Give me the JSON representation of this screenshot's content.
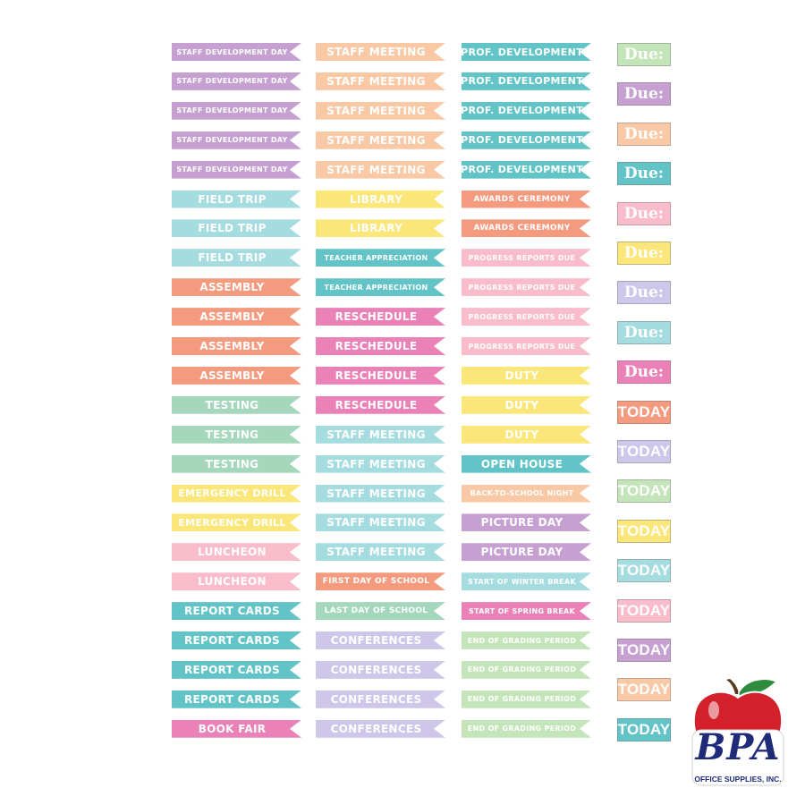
{
  "palette": {
    "purple": "#c7a0d2",
    "peach": "#f9c9a6",
    "teal": "#6fcbc9",
    "lightblue": "#a5dce0",
    "coral": "#f49a7f",
    "green": "#a5d7bd",
    "yellow": "#fbe679",
    "pink": "#f8bccb",
    "magenta": "#ea82b8",
    "lavender": "#cfc7ea",
    "mint": "#c4e5b9",
    "cyan": "#62c4c6"
  },
  "columns": [
    {
      "labels": [
        {
          "text": "STAFF DEVELOPMENT DAY",
          "color": "purple",
          "size": "xs"
        },
        {
          "text": "STAFF DEVELOPMENT DAY",
          "color": "purple",
          "size": "xs"
        },
        {
          "text": "STAFF DEVELOPMENT DAY",
          "color": "purple",
          "size": "xs"
        },
        {
          "text": "STAFF DEVELOPMENT DAY",
          "color": "purple",
          "size": "xs"
        },
        {
          "text": "STAFF DEVELOPMENT DAY",
          "color": "purple",
          "size": "xs"
        },
        {
          "text": "FIELD TRIP",
          "color": "lightblue",
          "size": "lg"
        },
        {
          "text": "FIELD TRIP",
          "color": "lightblue",
          "size": "lg"
        },
        {
          "text": "FIELD TRIP",
          "color": "lightblue",
          "size": "lg"
        },
        {
          "text": "ASSEMBLY",
          "color": "coral",
          "size": "lg"
        },
        {
          "text": "ASSEMBLY",
          "color": "coral",
          "size": "lg"
        },
        {
          "text": "ASSEMBLY",
          "color": "coral",
          "size": "lg"
        },
        {
          "text": "ASSEMBLY",
          "color": "coral",
          "size": "lg"
        },
        {
          "text": "TESTING",
          "color": "green",
          "size": "lg"
        },
        {
          "text": "TESTING",
          "color": "green",
          "size": "lg"
        },
        {
          "text": "TESTING",
          "color": "green",
          "size": "lg"
        },
        {
          "text": "EMERGENCY DRILL",
          "color": "yellow",
          "size": "md"
        },
        {
          "text": "EMERGENCY DRILL",
          "color": "yellow",
          "size": "md"
        },
        {
          "text": "LUNCHEON",
          "color": "pink",
          "size": "lg"
        },
        {
          "text": "LUNCHEON",
          "color": "pink",
          "size": "lg"
        },
        {
          "text": "REPORT CARDS",
          "color": "cyan",
          "size": "lg"
        },
        {
          "text": "REPORT CARDS",
          "color": "cyan",
          "size": "lg"
        },
        {
          "text": "REPORT CARDS",
          "color": "cyan",
          "size": "lg"
        },
        {
          "text": "REPORT CARDS",
          "color": "cyan",
          "size": "lg"
        },
        {
          "text": "BOOK FAIR",
          "color": "magenta",
          "size": "lg"
        }
      ]
    },
    {
      "labels": [
        {
          "text": "STAFF MEETING",
          "color": "peach",
          "size": "lg"
        },
        {
          "text": "STAFF MEETING",
          "color": "peach",
          "size": "lg"
        },
        {
          "text": "STAFF MEETING",
          "color": "peach",
          "size": "lg"
        },
        {
          "text": "STAFF MEETING",
          "color": "peach",
          "size": "lg"
        },
        {
          "text": "STAFF MEETING",
          "color": "peach",
          "size": "lg"
        },
        {
          "text": "LIBRARY",
          "color": "yellow",
          "size": "lg"
        },
        {
          "text": "LIBRARY",
          "color": "yellow",
          "size": "lg"
        },
        {
          "text": "TEACHER APPRECIATION",
          "color": "cyan",
          "size": "xs"
        },
        {
          "text": "TEACHER APPRECIATION",
          "color": "cyan",
          "size": "xs"
        },
        {
          "text": "RESCHEDULE",
          "color": "magenta",
          "size": "lg"
        },
        {
          "text": "RESCHEDULE",
          "color": "magenta",
          "size": "lg"
        },
        {
          "text": "RESCHEDULE",
          "color": "magenta",
          "size": "lg"
        },
        {
          "text": "RESCHEDULE",
          "color": "magenta",
          "size": "lg"
        },
        {
          "text": "STAFF MEETING",
          "color": "lightblue",
          "size": "lg"
        },
        {
          "text": "STAFF MEETING",
          "color": "lightblue",
          "size": "lg"
        },
        {
          "text": "STAFF MEETING",
          "color": "lightblue",
          "size": "lg"
        },
        {
          "text": "STAFF MEETING",
          "color": "lightblue",
          "size": "lg"
        },
        {
          "text": "STAFF MEETING",
          "color": "lightblue",
          "size": "lg"
        },
        {
          "text": "FIRST DAY OF SCHOOL",
          "color": "coral",
          "size": "sm"
        },
        {
          "text": "LAST DAY OF SCHOOL",
          "color": "green",
          "size": "sm"
        },
        {
          "text": "CONFERENCES",
          "color": "lavender",
          "size": "lg"
        },
        {
          "text": "CONFERENCES",
          "color": "lavender",
          "size": "lg"
        },
        {
          "text": "CONFERENCES",
          "color": "lavender",
          "size": "lg"
        },
        {
          "text": "CONFERENCES",
          "color": "lavender",
          "size": "lg"
        }
      ]
    },
    {
      "labels": [
        {
          "text": "PROF. DEVELOPMENT",
          "color": "cyan",
          "size": "md"
        },
        {
          "text": "PROF. DEVELOPMENT",
          "color": "cyan",
          "size": "md"
        },
        {
          "text": "PROF. DEVELOPMENT",
          "color": "cyan",
          "size": "md"
        },
        {
          "text": "PROF. DEVELOPMENT",
          "color": "cyan",
          "size": "md"
        },
        {
          "text": "PROF. DEVELOPMENT",
          "color": "cyan",
          "size": "md"
        },
        {
          "text": "AWARDS CEREMONY",
          "color": "coral",
          "size": "sm"
        },
        {
          "text": "AWARDS CEREMONY",
          "color": "coral",
          "size": "sm"
        },
        {
          "text": "PROGRESS REPORTS DUE",
          "color": "pink",
          "size": "xs"
        },
        {
          "text": "PROGRESS REPORTS DUE",
          "color": "pink",
          "size": "xs"
        },
        {
          "text": "PROGRESS REPORTS DUE",
          "color": "pink",
          "size": "xs"
        },
        {
          "text": "PROGRESS REPORTS DUE",
          "color": "pink",
          "size": "xs"
        },
        {
          "text": "DUTY",
          "color": "yellow",
          "size": "lg"
        },
        {
          "text": "DUTY",
          "color": "yellow",
          "size": "lg"
        },
        {
          "text": "DUTY",
          "color": "yellow",
          "size": "lg"
        },
        {
          "text": "OPEN HOUSE",
          "color": "cyan",
          "size": "lg"
        },
        {
          "text": "BACK-TO-SCHOOL NIGHT",
          "color": "peach",
          "size": "xs"
        },
        {
          "text": "PICTURE DAY",
          "color": "purple",
          "size": "lg"
        },
        {
          "text": "PICTURE DAY",
          "color": "purple",
          "size": "lg"
        },
        {
          "text": "START OF WINTER BREAK",
          "color": "lightblue",
          "size": "xs"
        },
        {
          "text": "START OF SPRING BREAK",
          "color": "magenta",
          "size": "xs"
        },
        {
          "text": "END OF GRADING PERIOD",
          "color": "mint",
          "size": "xs"
        },
        {
          "text": "END OF GRADING PERIOD",
          "color": "mint",
          "size": "xs"
        },
        {
          "text": "END OF GRADING PERIOD",
          "color": "mint",
          "size": "xs"
        },
        {
          "text": "END OF GRADING PERIOD",
          "color": "mint",
          "size": "xs"
        }
      ]
    }
  ],
  "boxes": [
    {
      "text": "Due:",
      "color": "mint",
      "kind": "due"
    },
    {
      "text": "Due:",
      "color": "purple",
      "kind": "due"
    },
    {
      "text": "Due:",
      "color": "peach",
      "kind": "due"
    },
    {
      "text": "Due:",
      "color": "cyan",
      "kind": "due"
    },
    {
      "text": "Due:",
      "color": "pink",
      "kind": "due"
    },
    {
      "text": "Due:",
      "color": "yellow",
      "kind": "due"
    },
    {
      "text": "Due:",
      "color": "lavender",
      "kind": "due"
    },
    {
      "text": "Due:",
      "color": "lightblue",
      "kind": "due"
    },
    {
      "text": "Due:",
      "color": "magenta",
      "kind": "due"
    },
    {
      "text": "TODAY",
      "color": "coral",
      "kind": "today"
    },
    {
      "text": "TODAY",
      "color": "lavender",
      "kind": "today"
    },
    {
      "text": "TODAY",
      "color": "mint",
      "kind": "today"
    },
    {
      "text": "TODAY",
      "color": "yellow",
      "kind": "today"
    },
    {
      "text": "TODAY",
      "color": "lightblue",
      "kind": "today"
    },
    {
      "text": "TODAY",
      "color": "pink",
      "kind": "today"
    },
    {
      "text": "TODAY",
      "color": "purple",
      "kind": "today"
    },
    {
      "text": "TODAY",
      "color": "peach",
      "kind": "today"
    },
    {
      "text": "TODAY",
      "color": "cyan",
      "kind": "today"
    }
  ],
  "logo": {
    "word": "BPA",
    "subtitle": "OFFICE SUPPLIES, INC.",
    "apple_color": "#d3202a",
    "leaf_color": "#2e8b3e"
  }
}
